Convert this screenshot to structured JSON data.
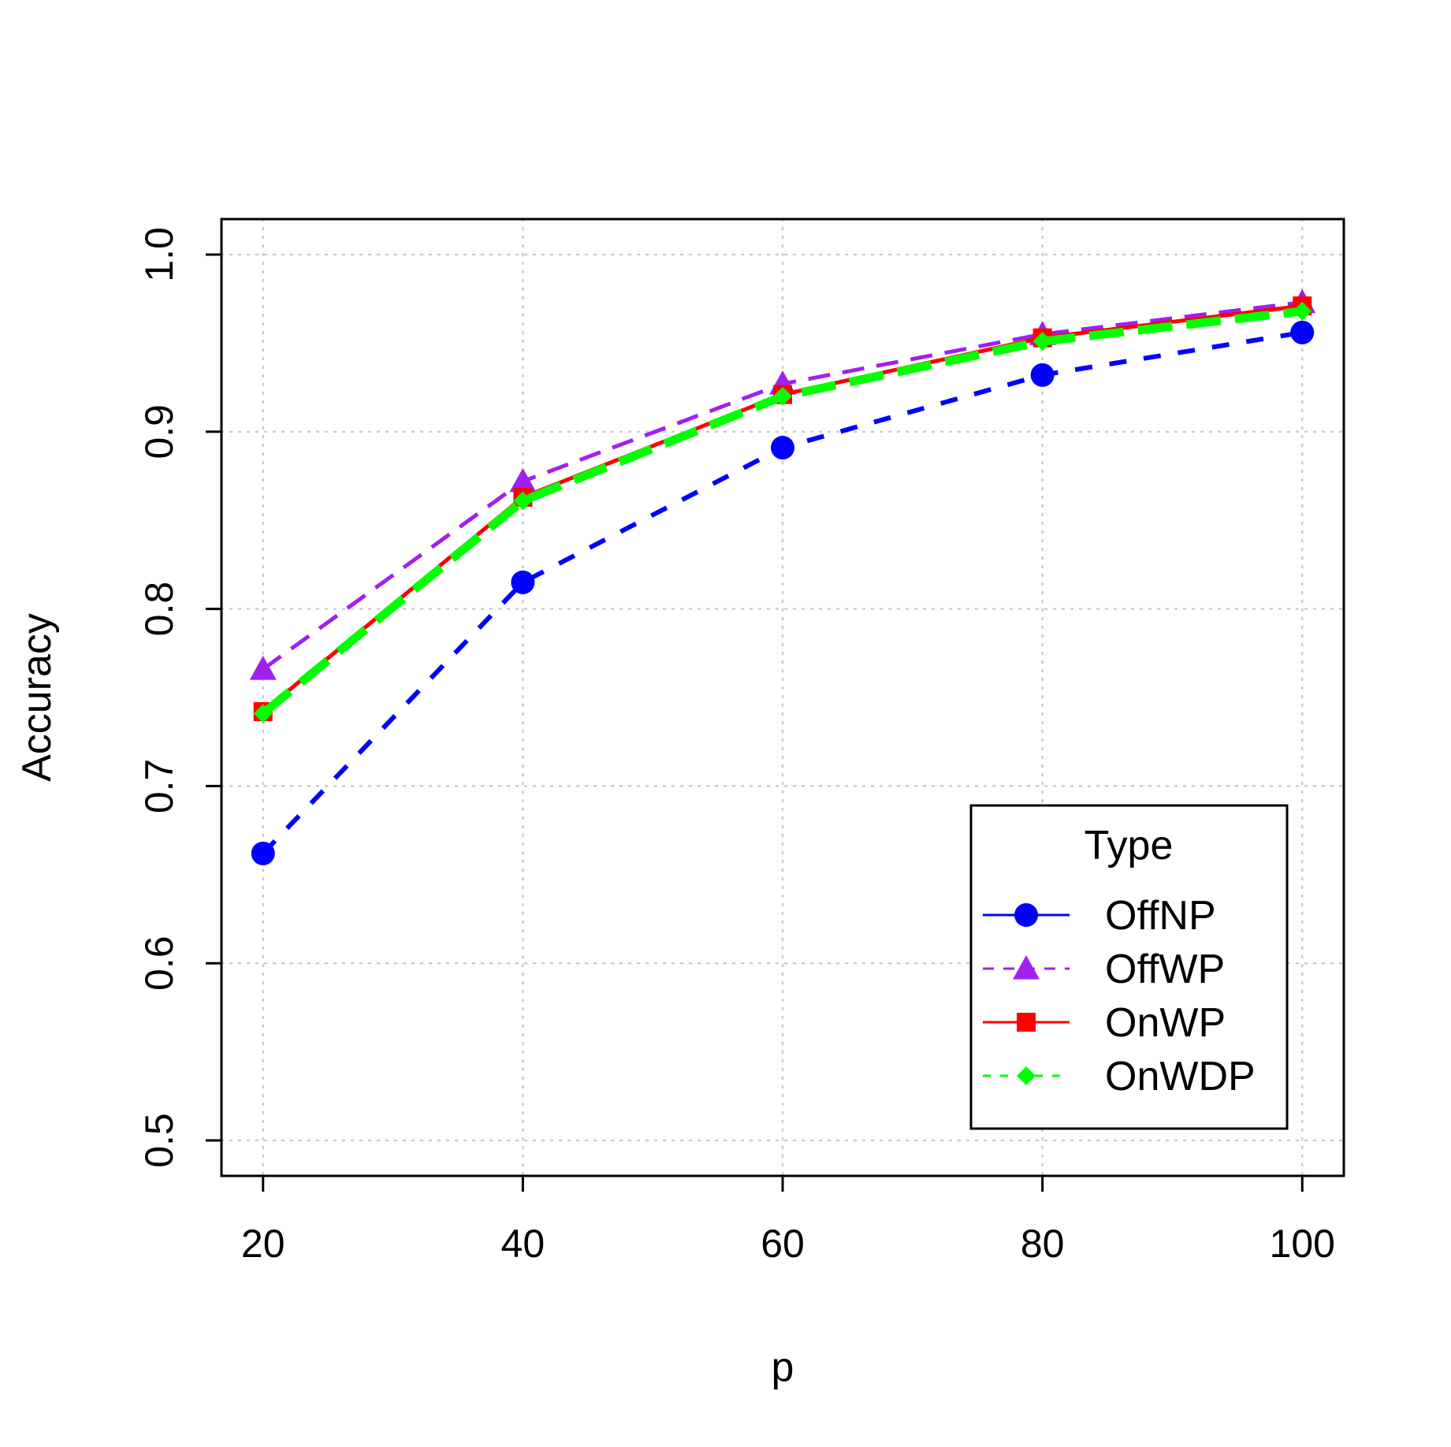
{
  "chart_data": {
    "type": "line",
    "title": "",
    "xlabel": "p",
    "ylabel": "Accuracy",
    "x": [
      20,
      40,
      60,
      80,
      100
    ],
    "xticks": [
      "20",
      "40",
      "60",
      "80",
      "100"
    ],
    "yticks": [
      "0.5",
      "0.6",
      "0.7",
      "0.8",
      "0.9",
      "1.0"
    ],
    "xlim": [
      16.8,
      103.2
    ],
    "ylim": [
      0.48,
      1.02
    ],
    "grid": true,
    "legend": {
      "title": "Type",
      "position": "bottom-right"
    },
    "series": [
      {
        "name": "OffNP",
        "values": [
          0.662,
          0.815,
          0.891,
          0.932,
          0.956
        ],
        "color": "#0000FF",
        "marker": "circle",
        "line": "dashed"
      },
      {
        "name": "OffWP",
        "values": [
          0.766,
          0.872,
          0.927,
          0.955,
          0.973
        ],
        "color": "#A020F0",
        "marker": "triangle",
        "line": "dashed"
      },
      {
        "name": "OnWP",
        "values": [
          0.742,
          0.863,
          0.921,
          0.953,
          0.971
        ],
        "color": "#FF0000",
        "marker": "square",
        "line": "solid"
      },
      {
        "name": "OnWDP",
        "values": [
          0.741,
          0.861,
          0.92,
          0.951,
          0.968
        ],
        "color": "#00FF00",
        "marker": "diamond",
        "line": "dashed"
      }
    ]
  }
}
